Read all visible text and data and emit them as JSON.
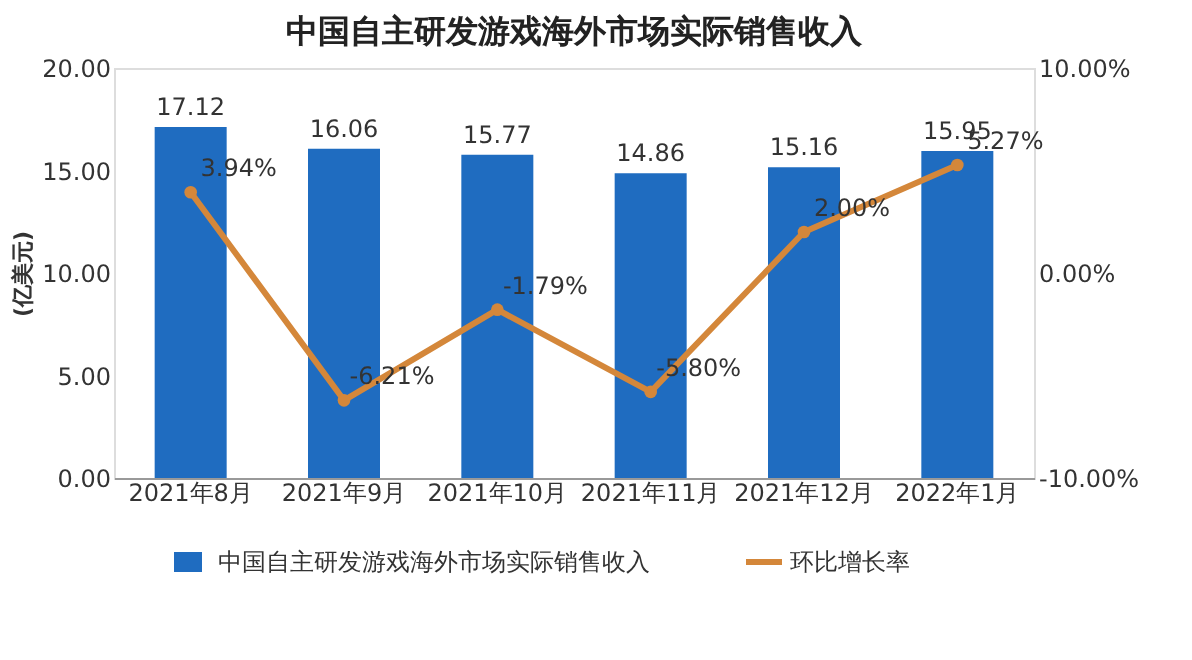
{
  "chart_data": {
    "type": "bar",
    "title": "中国自主研发游戏海外市场实际销售收入",
    "ylabel": "(亿美元)",
    "categories": [
      "2021年8月",
      "2021年9月",
      "2021年10月",
      "2021年11月",
      "2021年12月",
      "2022年1月"
    ],
    "series": [
      {
        "name": "中国自主研发游戏海外市场实际销售收入",
        "color": "#1f6cc0",
        "values": [
          17.12,
          16.06,
          15.77,
          14.86,
          15.16,
          15.95
        ],
        "value_labels": [
          "17.12",
          "16.06",
          "15.77",
          "14.86",
          "15.16",
          "15.95"
        ]
      },
      {
        "name": "环比增长率",
        "type": "line",
        "axis": "y2",
        "color": "#d4873a",
        "marker": "circle",
        "values": [
          3.94,
          -6.21,
          -1.79,
          -5.8,
          2.0,
          5.27
        ],
        "value_labels": [
          "3.94%",
          "-6.21%",
          "-1.79%",
          "-5.80%",
          "2.00%",
          "5.27%"
        ]
      }
    ],
    "ylim": [
      0,
      20
    ],
    "yticks": [
      {
        "value": 0,
        "label": "0.00"
      },
      {
        "value": 5,
        "label": "5.00"
      },
      {
        "value": 10,
        "label": "10.00"
      },
      {
        "value": 15,
        "label": "15.00"
      },
      {
        "value": 20,
        "label": "20.00"
      }
    ],
    "y2lim": [
      -10,
      10
    ],
    "y2ticks": [
      {
        "value": -10,
        "label": "-10.00%"
      },
      {
        "value": 0,
        "label": "0.00%"
      },
      {
        "value": 10,
        "label": "10.00%"
      }
    ],
    "legend": "bottom"
  }
}
